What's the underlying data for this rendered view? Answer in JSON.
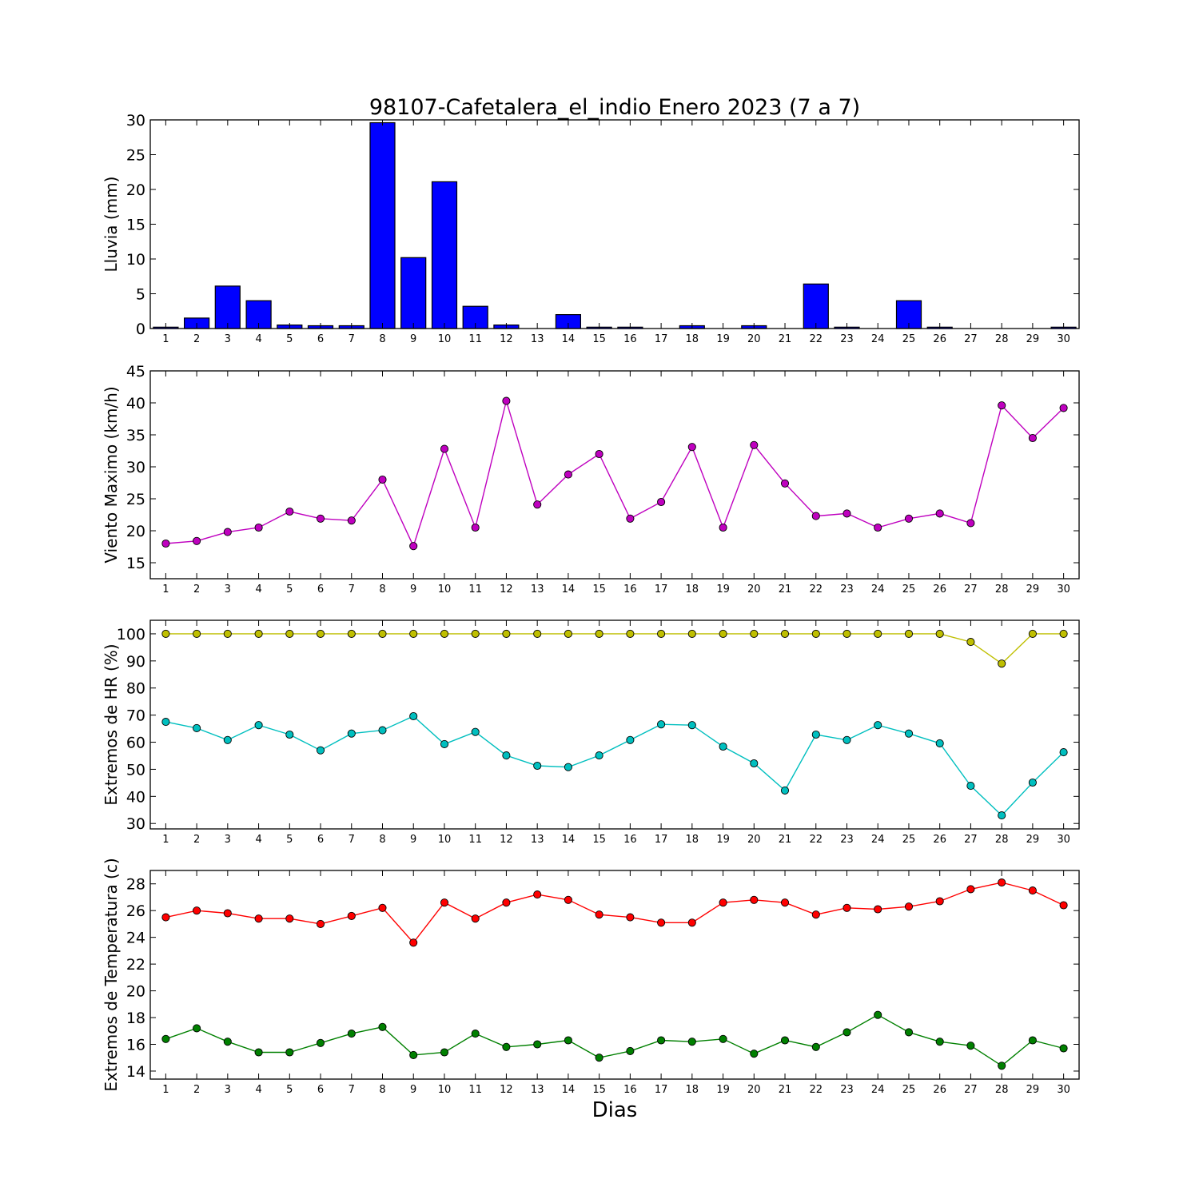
{
  "figure": {
    "title": "98107-Cafetalera_el_indio Enero 2023  (7 a 7)",
    "xlabel": "Dias"
  },
  "chart_data": [
    {
      "type": "bar",
      "ylabel": "Lluvia (mm)",
      "color": "#0000ff",
      "ylim": [
        0,
        30
      ],
      "yticks": [
        0,
        5,
        10,
        15,
        20,
        25,
        30
      ],
      "categories": [
        1,
        2,
        3,
        4,
        5,
        6,
        7,
        8,
        9,
        10,
        11,
        12,
        13,
        14,
        15,
        16,
        17,
        18,
        19,
        20,
        21,
        22,
        23,
        24,
        25,
        26,
        27,
        28,
        29,
        30
      ],
      "values": [
        0.2,
        1.5,
        6.1,
        4.0,
        0.5,
        0.4,
        0.4,
        29.6,
        10.2,
        21.1,
        3.2,
        0.5,
        0.0,
        2.0,
        0.2,
        0.2,
        0.0,
        0.4,
        0.0,
        0.4,
        0.0,
        6.4,
        0.2,
        0.0,
        4.0,
        0.2,
        0.0,
        0.0,
        0.0,
        0.2
      ]
    },
    {
      "type": "line",
      "ylabel": "Viento Maximo (km/h)",
      "ylim": [
        12.5,
        45
      ],
      "yticks": [
        15,
        20,
        25,
        30,
        35,
        40,
        45
      ],
      "x": [
        1,
        2,
        3,
        4,
        5,
        6,
        7,
        8,
        9,
        10,
        11,
        12,
        13,
        14,
        15,
        16,
        17,
        18,
        19,
        20,
        21,
        22,
        23,
        24,
        25,
        26,
        27,
        28,
        29,
        30
      ],
      "series": [
        {
          "color": "#bf00bf",
          "values": [
            18.0,
            18.4,
            19.8,
            20.5,
            23.0,
            21.9,
            21.6,
            28.0,
            17.6,
            32.8,
            20.5,
            40.3,
            24.1,
            28.8,
            32.0,
            21.9,
            24.5,
            33.1,
            20.5,
            33.4,
            27.4,
            22.3,
            22.7,
            20.5,
            21.9,
            22.7,
            21.2,
            39.6,
            34.5,
            39.2
          ]
        }
      ]
    },
    {
      "type": "line",
      "ylabel": "Extremos de HR (%)",
      "ylim": [
        28,
        105
      ],
      "yticks": [
        30,
        40,
        50,
        60,
        70,
        80,
        90,
        100
      ],
      "x": [
        1,
        2,
        3,
        4,
        5,
        6,
        7,
        8,
        9,
        10,
        11,
        12,
        13,
        14,
        15,
        16,
        17,
        18,
        19,
        20,
        21,
        22,
        23,
        24,
        25,
        26,
        27,
        28,
        29,
        30
      ],
      "series": [
        {
          "color": "#bfbf00",
          "values": [
            100,
            100,
            100,
            100,
            100,
            100,
            100,
            100,
            100,
            100,
            100,
            100,
            100,
            100,
            100,
            100,
            100,
            100,
            100,
            100,
            100,
            100,
            100,
            100,
            100,
            100,
            97,
            89,
            100,
            100
          ]
        },
        {
          "color": "#00bfbf",
          "values": [
            67.5,
            65.2,
            60.8,
            66.3,
            62.8,
            57.0,
            63.2,
            64.4,
            69.6,
            59.3,
            63.8,
            55.1,
            51.3,
            50.8,
            55.1,
            60.8,
            66.6,
            66.3,
            58.4,
            52.2,
            42.2,
            62.8,
            60.8,
            66.3,
            63.2,
            59.6,
            43.9,
            33.0,
            45.1,
            56.3
          ]
        }
      ]
    },
    {
      "type": "line",
      "ylabel": "Extremos de Temperatura (c)",
      "ylim": [
        13.4,
        29.0
      ],
      "yticks": [
        14,
        16,
        18,
        20,
        22,
        24,
        26,
        28
      ],
      "x": [
        1,
        2,
        3,
        4,
        5,
        6,
        7,
        8,
        9,
        10,
        11,
        12,
        13,
        14,
        15,
        16,
        17,
        18,
        19,
        20,
        21,
        22,
        23,
        24,
        25,
        26,
        27,
        28,
        29,
        30
      ],
      "series": [
        {
          "color": "#ff0000",
          "values": [
            25.5,
            26.0,
            25.8,
            25.4,
            25.4,
            25.0,
            25.6,
            26.2,
            23.6,
            26.6,
            25.4,
            26.6,
            27.2,
            26.8,
            25.7,
            25.5,
            25.1,
            25.1,
            26.6,
            26.8,
            26.6,
            25.7,
            26.2,
            26.1,
            26.3,
            26.7,
            27.6,
            28.1,
            27.5,
            26.4
          ]
        },
        {
          "color": "#008000",
          "values": [
            16.4,
            17.2,
            16.2,
            15.4,
            15.4,
            16.1,
            16.8,
            17.3,
            15.2,
            15.4,
            16.8,
            15.8,
            16.0,
            16.3,
            15.0,
            15.5,
            16.3,
            16.2,
            16.4,
            15.3,
            16.3,
            15.8,
            16.9,
            18.2,
            16.9,
            16.2,
            15.9,
            14.4,
            16.3,
            15.7
          ]
        }
      ]
    }
  ]
}
